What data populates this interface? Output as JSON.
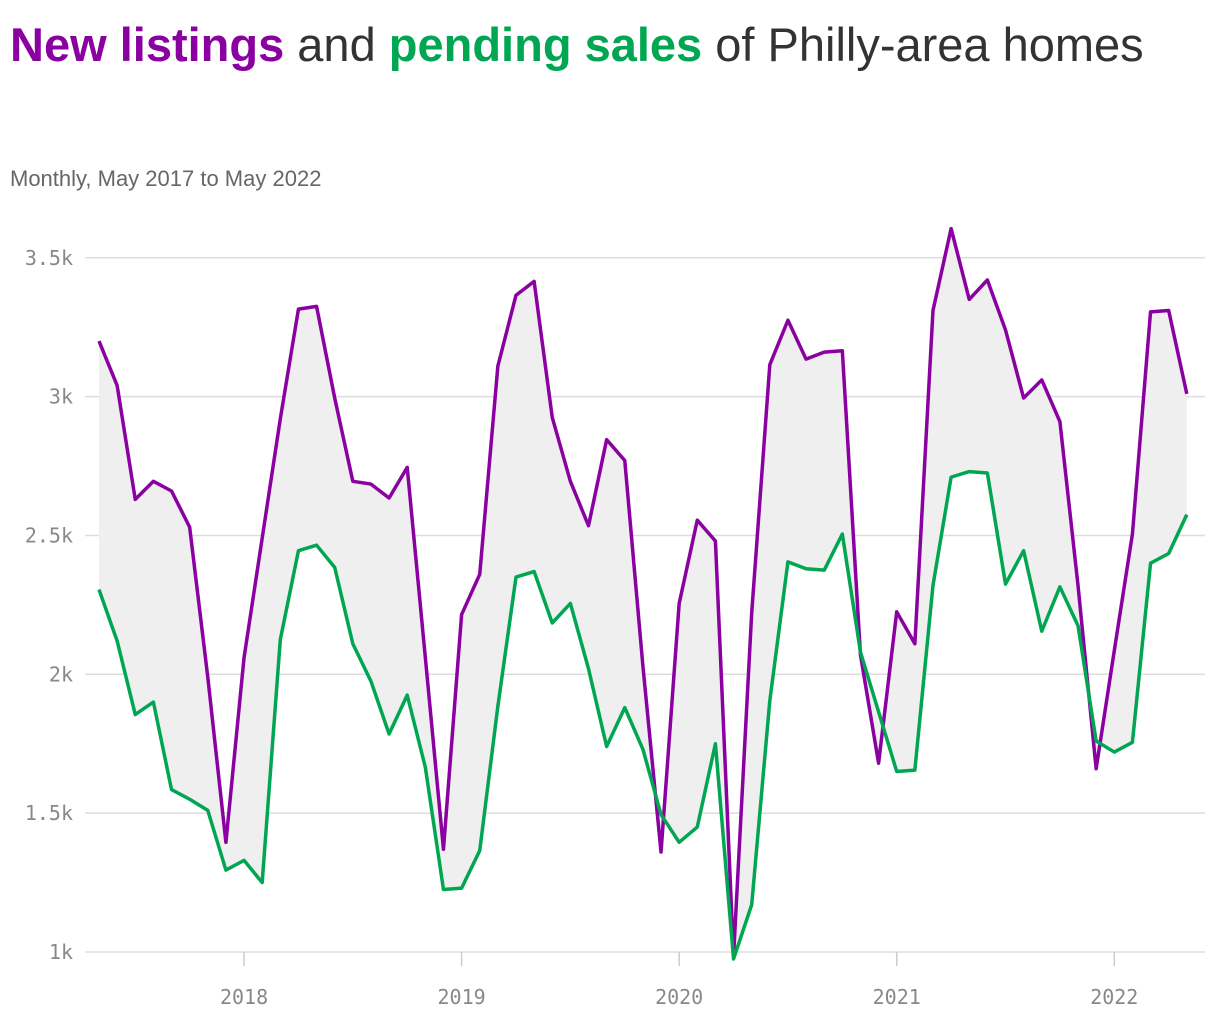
{
  "title": {
    "part1": "New listings",
    "part2": " and ",
    "part3": "pending sales",
    "part4": " of Philly-area homes"
  },
  "subtitle": "Monthly, May 2017 to May 2022",
  "colors": {
    "listings": "#8a00a0",
    "pending": "#00a651",
    "band": "#efefef"
  },
  "chart_data": {
    "type": "line",
    "x_start": "2017-05",
    "x_tick_labels": [
      "2018",
      "2019",
      "2020",
      "2021",
      "2022"
    ],
    "y_tick_labels": [
      "1k",
      "1.5k",
      "2k",
      "2.5k",
      "3k",
      "3.5k"
    ],
    "y_ticks": [
      1000,
      1500,
      2000,
      2500,
      3000,
      3500
    ],
    "ylim": [
      1000,
      3600
    ],
    "series": [
      {
        "name": "New listings",
        "values": [
          3200,
          3040,
          2630,
          2695,
          2660,
          2530,
          1990,
          1395,
          2060,
          2490,
          2920,
          3315,
          3325,
          2995,
          2695,
          2685,
          2635,
          2745,
          2060,
          1370,
          2215,
          2360,
          3110,
          3365,
          3415,
          2925,
          2695,
          2535,
          2845,
          2770,
          2030,
          1360,
          2255,
          2555,
          2480,
          985,
          2220,
          3115,
          3275,
          3135,
          3160,
          3165,
          2070,
          1680,
          2225,
          2110,
          3310,
          3605,
          3350,
          3420,
          3240,
          2995,
          3060,
          2910,
          2320,
          1660,
          2085,
          2505,
          3305,
          3310,
          3010
        ]
      },
      {
        "name": "Pending sales",
        "values": [
          2305,
          2120,
          1855,
          1900,
          1585,
          1550,
          1510,
          1295,
          1330,
          1250,
          2125,
          2445,
          2465,
          2385,
          2110,
          1975,
          1785,
          1925,
          1665,
          1225,
          1230,
          1365,
          1885,
          2350,
          2370,
          2185,
          2255,
          2020,
          1740,
          1880,
          1730,
          1495,
          1395,
          1450,
          1750,
          975,
          1170,
          1905,
          2405,
          2380,
          2375,
          2505,
          2080,
          1865,
          1650,
          1655,
          2320,
          2710,
          2730,
          2725,
          2325,
          2445,
          2155,
          2315,
          2175,
          1760,
          1720,
          1755,
          2400,
          2435,
          2575
        ]
      }
    ]
  }
}
